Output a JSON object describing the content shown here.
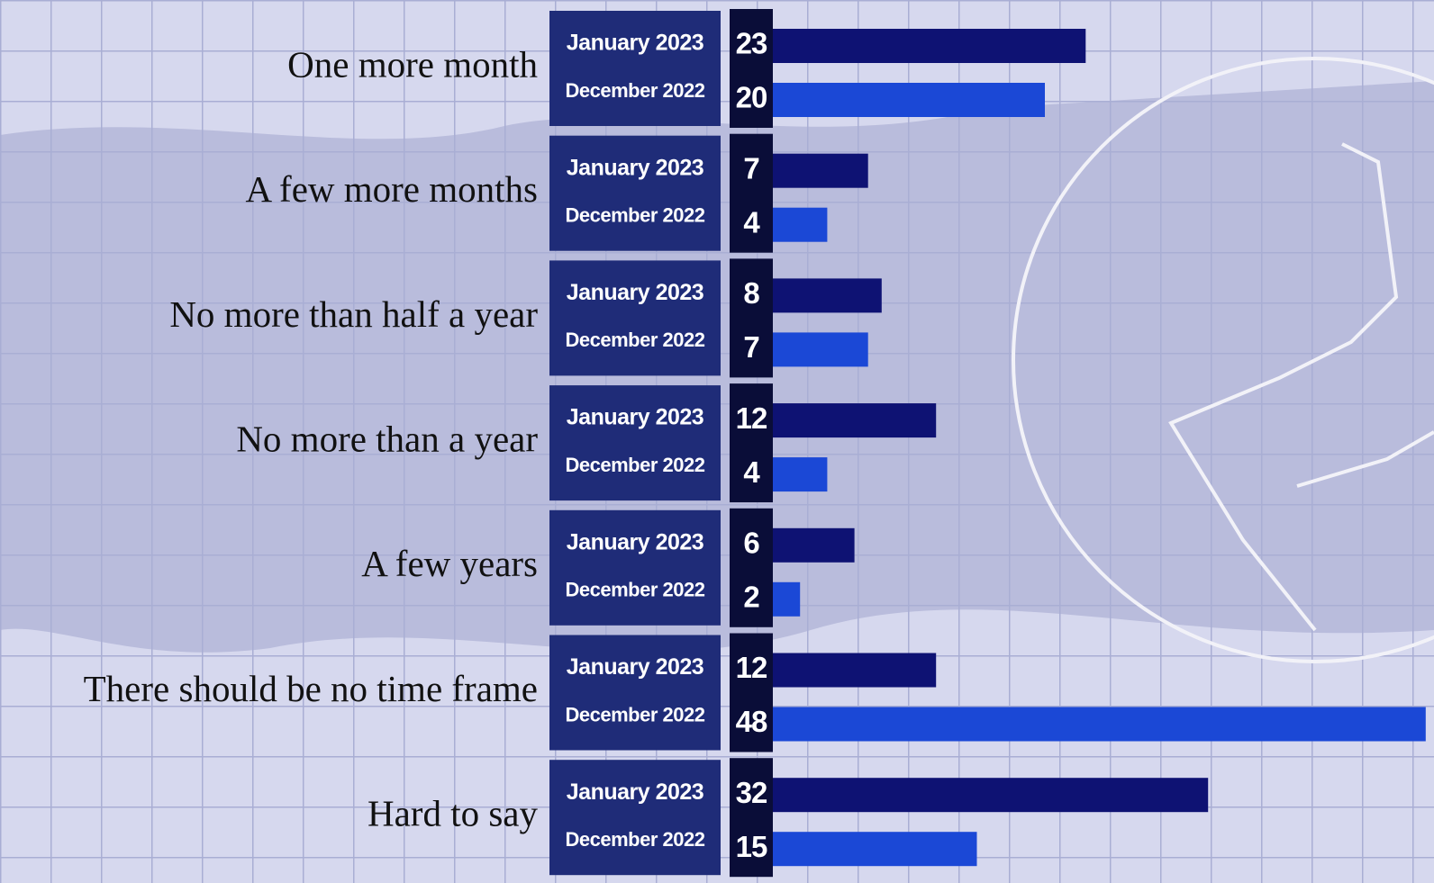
{
  "chart_data": {
    "type": "bar",
    "horizontal": true,
    "categories": [
      "One more month",
      "A few more months",
      "No more than half a year",
      "No more than a year",
      "A few years",
      "There should be no time frame",
      "Hard to say"
    ],
    "series": [
      {
        "name": "January 2023",
        "color": "#0e1273",
        "values": [
          23,
          7,
          8,
          12,
          6,
          12,
          32
        ]
      },
      {
        "name": "December 2022",
        "color": "#1b48d6",
        "values": [
          20,
          4,
          7,
          4,
          2,
          48,
          15
        ]
      }
    ]
  }
}
